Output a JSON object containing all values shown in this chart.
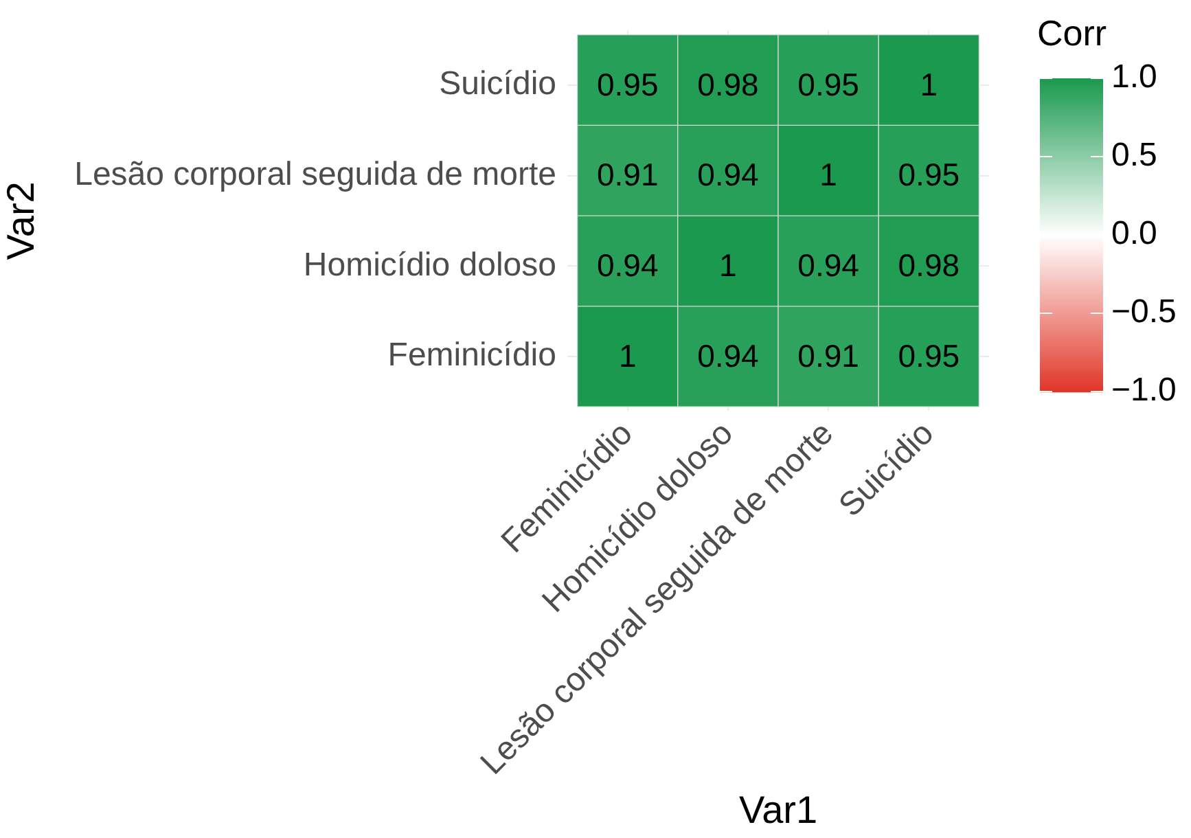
{
  "chart_data": {
    "type": "heatmap",
    "xlabel": "Var1",
    "ylabel": "Var2",
    "legend_title": "Corr",
    "categories": [
      "Feminicídio",
      "Homicídio doloso",
      "Lesão corporal seguida de morte",
      "Suicídio"
    ],
    "y_categories": [
      "Suicídio",
      "Lesão corporal seguida de morte",
      "Homicídio doloso",
      "Feminicídio"
    ],
    "cells": [
      [
        0.95,
        0.98,
        0.95,
        1
      ],
      [
        0.91,
        0.94,
        1,
        0.95
      ],
      [
        0.94,
        1,
        0.94,
        0.98
      ],
      [
        1,
        0.94,
        0.91,
        0.95
      ]
    ],
    "colors": [
      "#e03527",
      "#ffffff",
      "#1b9a4f"
    ],
    "clim": [
      -1,
      1
    ],
    "cticks": [
      {
        "value": 1,
        "label": "1.0"
      },
      {
        "value": 0.5,
        "label": "0.5"
      },
      {
        "value": 0,
        "label": "0.0"
      },
      {
        "value": -0.5,
        "label": "−0.5"
      },
      {
        "value": -1,
        "label": "−1.0"
      }
    ],
    "data_labels": true,
    "grid": true
  }
}
